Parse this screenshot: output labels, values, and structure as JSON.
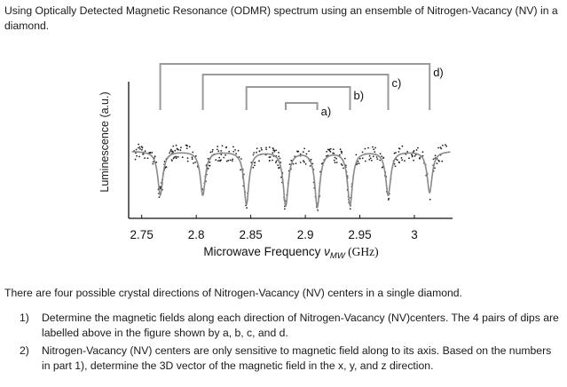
{
  "intro_text": "Using Optically Detected Magnetic Resonance (ODMR) spectrum using an ensemble of Nitrogen-Vacancy (NV) in a diamond.",
  "question_text": "There are four possible crystal directions of Nitrogen-Vacancy (NV) centers in a single diamond.",
  "tasks": [
    {
      "num": "1)",
      "text": "Determine the magnetic fields along each direction of Nitrogen-Vacancy (NV)centers. The 4 pairs of dips are labelled above in the figure shown by a, b, c, and d."
    },
    {
      "num": "2)",
      "text": "Nitrogen-Vacancy (NV) centers are only sensitive to magnetic field along to its axis. Based on the numbers in part 1), determine the 3D vector of the magnetic field in the x, y, and z direction."
    }
  ],
  "chart_data": {
    "type": "line",
    "ylabel": "Luminescence (a.u.)",
    "xlabel": "Microwave Frequency ν_MW (GHz)",
    "xlabel_parts": {
      "main": "Microwave Frequency ",
      "symbol": "ν",
      "sub": "MW",
      "unit": " (GHz)"
    },
    "xticks": [
      "2.75",
      "2.8",
      "2.85",
      "2.9",
      "2.95",
      "3"
    ],
    "xlim": [
      2.738,
      3.035
    ],
    "ylim": [
      0,
      1
    ],
    "series": [
      {
        "dips": [
          2.767,
          2.806,
          2.846,
          2.882,
          2.911,
          2.941,
          2.976,
          3.014
        ],
        "depths": [
          0.55,
          0.55,
          0.66,
          0.68,
          0.69,
          0.67,
          0.55,
          0.52
        ]
      }
    ],
    "dip_pairs": [
      {
        "label": "a)",
        "left": 2.882,
        "right": 2.911
      },
      {
        "label": "b)",
        "left": 2.846,
        "right": 2.941
      },
      {
        "label": "c)",
        "left": 2.806,
        "right": 2.976
      },
      {
        "label": "d)",
        "left": 2.767,
        "right": 3.014
      }
    ]
  }
}
